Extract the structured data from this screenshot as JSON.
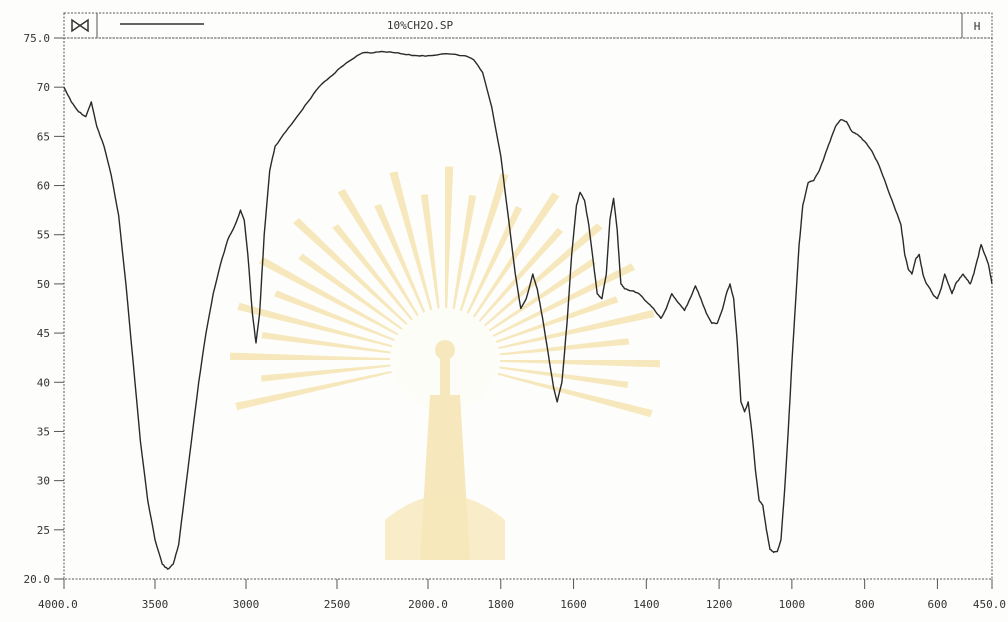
{
  "window": {
    "title": "10%CH2O.SP",
    "left_icon": "bowtie-icon",
    "right_icon": "bracket-icon",
    "right_glyph": "H"
  },
  "watermark": {
    "description": "university emblem with radiating rays",
    "color": "#f2d88a"
  },
  "chart_data": {
    "type": "line",
    "title": "",
    "xlabel": "",
    "ylabel": "",
    "xlim": [
      4000,
      450
    ],
    "ylim": [
      20,
      75
    ],
    "x_axis_reversed": true,
    "x_breakpoints": [
      4000,
      2000,
      450
    ],
    "x_tick_values": [
      4000,
      3500,
      3000,
      2500,
      2000,
      1800,
      1600,
      1400,
      1200,
      1000,
      800,
      600,
      450
    ],
    "x_tick_labels": [
      "4000.0",
      "3500",
      "3000",
      "2500",
      "2000.0",
      "1800",
      "1600",
      "1400",
      "1200",
      "1000",
      "800",
      "600",
      "450.0"
    ],
    "y_tick_values": [
      20,
      25,
      30,
      35,
      40,
      45,
      50,
      55,
      60,
      65,
      70,
      75
    ],
    "y_tick_labels": [
      "20.0",
      "25",
      "30",
      "35",
      "40",
      "45",
      "50",
      "55",
      "60",
      "65",
      "70",
      "75.0"
    ],
    "line_color": "#2a2a2a",
    "series": [
      {
        "name": "",
        "points": [
          [
            4000,
            70
          ],
          [
            3960,
            68.5
          ],
          [
            3920,
            67.5
          ],
          [
            3880,
            67
          ],
          [
            3850,
            68.5
          ],
          [
            3820,
            66
          ],
          [
            3780,
            64
          ],
          [
            3740,
            61
          ],
          [
            3700,
            57
          ],
          [
            3660,
            50
          ],
          [
            3620,
            42
          ],
          [
            3580,
            34
          ],
          [
            3540,
            28
          ],
          [
            3500,
            24
          ],
          [
            3460,
            21.5
          ],
          [
            3430,
            21
          ],
          [
            3400,
            21.5
          ],
          [
            3370,
            23.5
          ],
          [
            3340,
            28
          ],
          [
            3300,
            34
          ],
          [
            3260,
            40
          ],
          [
            3220,
            45
          ],
          [
            3180,
            49
          ],
          [
            3140,
            52
          ],
          [
            3100,
            54.5
          ],
          [
            3060,
            56
          ],
          [
            3030,
            57.5
          ],
          [
            3010,
            56.5
          ],
          [
            2990,
            53
          ],
          [
            2965,
            47
          ],
          [
            2945,
            44
          ],
          [
            2925,
            47
          ],
          [
            2900,
            55
          ],
          [
            2870,
            61.5
          ],
          [
            2840,
            64
          ],
          [
            2780,
            65.5
          ],
          [
            2720,
            67
          ],
          [
            2660,
            68.5
          ],
          [
            2600,
            70
          ],
          [
            2540,
            71
          ],
          [
            2480,
            72
          ],
          [
            2420,
            72.8
          ],
          [
            2360,
            73.5
          ],
          [
            2300,
            73.5
          ],
          [
            2240,
            73.6
          ],
          [
            2180,
            73.5
          ],
          [
            2120,
            73.3
          ],
          [
            2060,
            73.2
          ],
          [
            2000,
            73.2
          ],
          [
            1950,
            73.4
          ],
          [
            1900,
            73.2
          ],
          [
            1875,
            72.8
          ],
          [
            1850,
            71.5
          ],
          [
            1825,
            68
          ],
          [
            1800,
            63
          ],
          [
            1780,
            57
          ],
          [
            1760,
            51
          ],
          [
            1745,
            47.5
          ],
          [
            1730,
            48.5
          ],
          [
            1712,
            51
          ],
          [
            1700,
            49.5
          ],
          [
            1685,
            46.5
          ],
          [
            1670,
            43
          ],
          [
            1655,
            39.5
          ],
          [
            1645,
            38
          ],
          [
            1632,
            40
          ],
          [
            1618,
            46
          ],
          [
            1605,
            53
          ],
          [
            1592,
            58
          ],
          [
            1582,
            59.3
          ],
          [
            1570,
            58.5
          ],
          [
            1558,
            56
          ],
          [
            1545,
            52
          ],
          [
            1535,
            49
          ],
          [
            1522,
            48.5
          ],
          [
            1510,
            51
          ],
          [
            1500,
            56.5
          ],
          [
            1490,
            58.7
          ],
          [
            1480,
            55.5
          ],
          [
            1470,
            50
          ],
          [
            1460,
            49.5
          ],
          [
            1440,
            49.3
          ],
          [
            1420,
            49
          ],
          [
            1400,
            48.2
          ],
          [
            1380,
            47.5
          ],
          [
            1360,
            46.5
          ],
          [
            1345,
            47.5
          ],
          [
            1330,
            49
          ],
          [
            1310,
            48
          ],
          [
            1295,
            47.3
          ],
          [
            1280,
            48.5
          ],
          [
            1265,
            49.8
          ],
          [
            1250,
            48.5
          ],
          [
            1235,
            47
          ],
          [
            1220,
            46
          ],
          [
            1205,
            46
          ],
          [
            1190,
            47.5
          ],
          [
            1180,
            49
          ],
          [
            1170,
            50
          ],
          [
            1160,
            48.5
          ],
          [
            1150,
            44
          ],
          [
            1140,
            38
          ],
          [
            1130,
            37
          ],
          [
            1120,
            38
          ],
          [
            1110,
            35
          ],
          [
            1100,
            31
          ],
          [
            1090,
            28
          ],
          [
            1080,
            27.5
          ],
          [
            1070,
            25
          ],
          [
            1060,
            23
          ],
          [
            1050,
            22.7
          ],
          [
            1040,
            22.8
          ],
          [
            1030,
            24
          ],
          [
            1020,
            29
          ],
          [
            1010,
            35
          ],
          [
            1000,
            42
          ],
          [
            990,
            48
          ],
          [
            980,
            54
          ],
          [
            970,
            58
          ],
          [
            955,
            60.3
          ],
          [
            940,
            60.5
          ],
          [
            925,
            61.5
          ],
          [
            910,
            63
          ],
          [
            895,
            64.5
          ],
          [
            880,
            66
          ],
          [
            865,
            66.7
          ],
          [
            850,
            66.5
          ],
          [
            835,
            65.5
          ],
          [
            820,
            65.2
          ],
          [
            800,
            64.5
          ],
          [
            780,
            63.5
          ],
          [
            760,
            62
          ],
          [
            740,
            60
          ],
          [
            720,
            58
          ],
          [
            700,
            56
          ],
          [
            690,
            53
          ],
          [
            680,
            51.5
          ],
          [
            670,
            51
          ],
          [
            660,
            52.5
          ],
          [
            650,
            53
          ],
          [
            640,
            51
          ],
          [
            630,
            50
          ],
          [
            620,
            49.5
          ],
          [
            610,
            48.8
          ],
          [
            600,
            48.5
          ],
          [
            590,
            49.5
          ],
          [
            580,
            51
          ],
          [
            570,
            50
          ],
          [
            560,
            49
          ],
          [
            550,
            50
          ],
          [
            540,
            50.5
          ],
          [
            530,
            51
          ],
          [
            520,
            50.5
          ],
          [
            510,
            50
          ],
          [
            500,
            51
          ],
          [
            490,
            52.5
          ],
          [
            480,
            54
          ],
          [
            470,
            53
          ],
          [
            460,
            52
          ],
          [
            450,
            50
          ]
        ]
      }
    ]
  }
}
